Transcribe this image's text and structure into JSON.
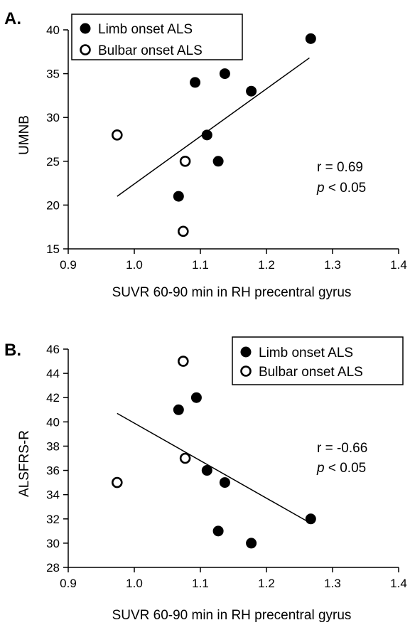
{
  "chart_data": [
    {
      "type": "scatter",
      "panel_label": "A.",
      "xlabel": "SUVR 60-90 min in RH precentral gyrus",
      "ylabel": "UMNB",
      "xlim": [
        0.9,
        1.4
      ],
      "ylim": [
        15,
        40
      ],
      "xticks": [
        "0.9",
        "1.0",
        "1.1",
        "1.2",
        "1.3",
        "1.4"
      ],
      "yticks": [
        "15",
        "20",
        "25",
        "30",
        "35",
        "40"
      ],
      "legend_position": "top-left",
      "series": [
        {
          "name": "Limb onset ALS",
          "marker": "filled-circle",
          "points": [
            [
              1.067,
              21
            ],
            [
              1.092,
              34
            ],
            [
              1.11,
              28
            ],
            [
              1.127,
              25
            ],
            [
              1.137,
              35
            ],
            [
              1.177,
              33
            ],
            [
              1.267,
              39
            ]
          ]
        },
        {
          "name": "Bulbar onset ALS",
          "marker": "open-circle",
          "points": [
            [
              0.974,
              28
            ],
            [
              1.077,
              25
            ],
            [
              1.074,
              17
            ]
          ]
        }
      ],
      "fit_line": [
        [
          0.974,
          21.0
        ],
        [
          1.265,
          36.8
        ]
      ],
      "stat_r": "r = 0.69",
      "stat_p_symbol": "p",
      "stat_p_rest": " < 0.05",
      "grid": false
    },
    {
      "type": "scatter",
      "panel_label": "B.",
      "xlabel": "SUVR 60-90 min in RH precentral gyrus",
      "ylabel": "ALSFRS-R",
      "xlim": [
        0.9,
        1.4
      ],
      "ylim": [
        28,
        46
      ],
      "xticks": [
        "0.9",
        "1.0",
        "1.1",
        "1.2",
        "1.3",
        "1.4"
      ],
      "yticks": [
        "28",
        "30",
        "32",
        "34",
        "36",
        "38",
        "40",
        "42",
        "44",
        "46"
      ],
      "legend_position": "top-right",
      "series": [
        {
          "name": "Limb onset ALS",
          "marker": "filled-circle",
          "points": [
            [
              1.067,
              41
            ],
            [
              1.094,
              42
            ],
            [
              1.11,
              36
            ],
            [
              1.127,
              31
            ],
            [
              1.137,
              35
            ],
            [
              1.177,
              30
            ],
            [
              1.267,
              32
            ]
          ]
        },
        {
          "name": "Bulbar onset ALS",
          "marker": "open-circle",
          "points": [
            [
              0.974,
              35
            ],
            [
              1.074,
              45
            ],
            [
              1.077,
              37
            ]
          ]
        }
      ],
      "fit_line": [
        [
          0.974,
          40.7
        ],
        [
          1.265,
          31.7
        ]
      ],
      "stat_r": "r = -0.66",
      "stat_p_symbol": "p",
      "stat_p_rest": " < 0.05",
      "grid": false
    }
  ]
}
